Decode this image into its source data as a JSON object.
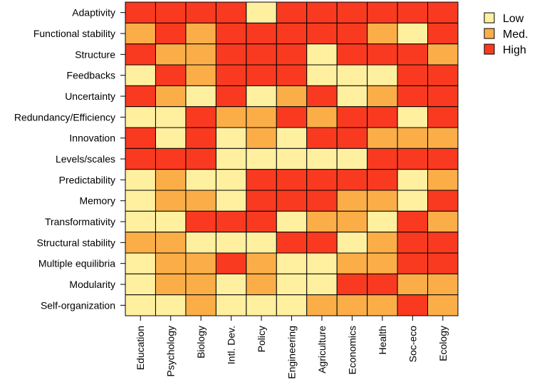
{
  "chart_data": {
    "type": "heatmap",
    "title": "",
    "xlabel": "",
    "ylabel": "",
    "columns": [
      "Education",
      "Psychology",
      "Biology",
      "Intl. Dev.",
      "Policy",
      "Engineering",
      "Agriculture",
      "Economics",
      "Health",
      "Soc-eco",
      "Ecology"
    ],
    "rows": [
      "Adaptivity",
      "Functional stability",
      "Structure",
      "Feedbacks",
      "Uncertainty",
      "Redundancy/Efficiency",
      "Innovation",
      "Levels/scales",
      "Predictability",
      "Memory",
      "Transformativity",
      "Structural stability",
      "Multiple equilibria",
      "Modularity",
      "Self-organization"
    ],
    "level_labels": [
      "Low",
      "Med.",
      "High"
    ],
    "colors": {
      "Low": "#FFF0A0",
      "Med.": "#FBAE48",
      "High": "#F93A20"
    },
    "legend_position": "top-right",
    "values": [
      [
        "High",
        "High",
        "High",
        "High",
        "Low",
        "High",
        "High",
        "High",
        "High",
        "High",
        "High"
      ],
      [
        "Med.",
        "High",
        "Med.",
        "High",
        "High",
        "High",
        "High",
        "High",
        "Med.",
        "Low",
        "High"
      ],
      [
        "High",
        "Med.",
        "Med.",
        "High",
        "High",
        "High",
        "Low",
        "High",
        "High",
        "High",
        "Med."
      ],
      [
        "Low",
        "High",
        "Med.",
        "High",
        "High",
        "High",
        "Low",
        "Low",
        "Low",
        "High",
        "High"
      ],
      [
        "High",
        "Med.",
        "Low",
        "High",
        "Low",
        "Med.",
        "High",
        "Low",
        "Med.",
        "High",
        "High"
      ],
      [
        "Low",
        "Low",
        "High",
        "Med.",
        "Med.",
        "High",
        "Med.",
        "High",
        "High",
        "Low",
        "High"
      ],
      [
        "High",
        "Low",
        "High",
        "Low",
        "Med.",
        "Low",
        "High",
        "High",
        "Med.",
        "Med.",
        "Med."
      ],
      [
        "High",
        "High",
        "High",
        "Low",
        "Low",
        "Low",
        "Low",
        "Low",
        "High",
        "High",
        "High"
      ],
      [
        "Low",
        "Med.",
        "Low",
        "Low",
        "High",
        "High",
        "High",
        "High",
        "High",
        "Low",
        "Med."
      ],
      [
        "Low",
        "Med.",
        "Med.",
        "Low",
        "High",
        "High",
        "High",
        "Med.",
        "Med.",
        "Low",
        "High"
      ],
      [
        "Low",
        "Low",
        "High",
        "High",
        "High",
        "Low",
        "Med.",
        "Med.",
        "Low",
        "High",
        "Med."
      ],
      [
        "Med.",
        "Med.",
        "Low",
        "Low",
        "Low",
        "High",
        "High",
        "Low",
        "Med.",
        "High",
        "High"
      ],
      [
        "Low",
        "Med.",
        "Med.",
        "High",
        "Med.",
        "Low",
        "Low",
        "Med.",
        "Med.",
        "High",
        "High"
      ],
      [
        "Low",
        "Med.",
        "Med.",
        "Low",
        "Med.",
        "Low",
        "Low",
        "High",
        "High",
        "Med.",
        "Med."
      ],
      [
        "Low",
        "Low",
        "Med.",
        "Low",
        "Low",
        "Low",
        "Med.",
        "Med.",
        "Med.",
        "High",
        "Med."
      ]
    ]
  }
}
